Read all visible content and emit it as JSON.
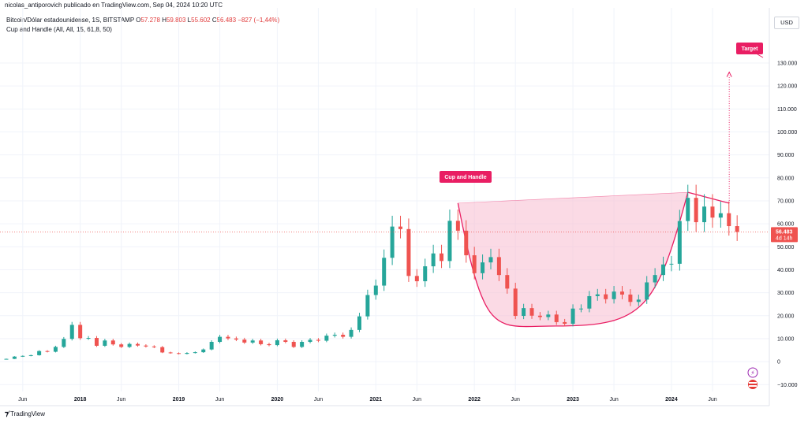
{
  "header": {
    "publisher_line": "nicolas_antiporovich publicado en TradingView.com, Sep 04, 2024 10:20 UTC"
  },
  "legend": {
    "symbol": "Bitcoin/Dólar estadounidense, 1S, BITSTAMP",
    "o_label": "O",
    "o_value": "57.278",
    "h_label": "H",
    "h_value": "59.803",
    "l_label": "L",
    "l_value": "55.602",
    "c_label": "C",
    "c_value": "56.483",
    "change": "−827 (−1,44%)",
    "indicator": "Cup and Handle (All, All, 15, 61,8, 50)"
  },
  "currency_button": "USD",
  "footer": {
    "brand": "TradingView"
  },
  "price_label": {
    "value": "56.483",
    "countdown": "4d 14h"
  },
  "annotations": {
    "cup_label": "Cup and Handle",
    "target_label": "Target"
  },
  "colors": {
    "up": "#26a69a",
    "down": "#ef5350",
    "accent": "#e91e63",
    "cup_fill": "#f8bbd0"
  },
  "chart_data": {
    "type": "candlestick",
    "ylim": [
      -13000,
      142000
    ],
    "y_ticks": [
      -10000,
      0,
      10000,
      20000,
      30000,
      40000,
      50000,
      60000,
      70000,
      80000,
      90000,
      100000,
      110000,
      120000,
      130000
    ],
    "y_tick_labels": [
      "−10.000",
      "0",
      "10.000",
      "20.000",
      "30.000",
      "40.000",
      "50.000",
      "60.000",
      "70.000",
      "80.000",
      "90.000",
      "100.000",
      "110.000",
      "120.000",
      "130.000"
    ],
    "x_ticks": [
      "2017-06",
      "2018-01",
      "2018-06",
      "2019-01",
      "2019-06",
      "2020-01",
      "2020-06",
      "2021-01",
      "2021-06",
      "2022-01",
      "2022-06",
      "2023-01",
      "2023-06",
      "2024-01",
      "2024-06"
    ],
    "x_tick_labels": [
      "Jun",
      "2018",
      "Jun",
      "2019",
      "Jun",
      "2020",
      "Jun",
      "2021",
      "Jun",
      "2022",
      "Jun",
      "2023",
      "Jun",
      "2024",
      "Jun"
    ],
    "x_range": [
      "2017-04",
      "2024-11"
    ],
    "last_close": 56483,
    "closes": [
      [
        "2017-04",
        1200
      ],
      [
        "2017-05",
        2200
      ],
      [
        "2017-06",
        2500
      ],
      [
        "2017-07",
        2800
      ],
      [
        "2017-08",
        4600
      ],
      [
        "2017-09",
        4300
      ],
      [
        "2017-10",
        6400
      ],
      [
        "2017-11",
        9900
      ],
      [
        "2017-12",
        16000
      ],
      [
        "2018-01",
        10200
      ],
      [
        "2018-02",
        10300
      ],
      [
        "2018-03",
        6900
      ],
      [
        "2018-04",
        9200
      ],
      [
        "2018-05",
        7500
      ],
      [
        "2018-06",
        6400
      ],
      [
        "2018-07",
        7700
      ],
      [
        "2018-08",
        7000
      ],
      [
        "2018-09",
        6600
      ],
      [
        "2018-10",
        6300
      ],
      [
        "2018-11",
        4000
      ],
      [
        "2018-12",
        3700
      ],
      [
        "2019-01",
        3400
      ],
      [
        "2019-02",
        3800
      ],
      [
        "2019-03",
        4100
      ],
      [
        "2019-04",
        5300
      ],
      [
        "2019-05",
        8600
      ],
      [
        "2019-06",
        10800
      ],
      [
        "2019-07",
        10100
      ],
      [
        "2019-08",
        9600
      ],
      [
        "2019-09",
        8300
      ],
      [
        "2019-10",
        9200
      ],
      [
        "2019-11",
        7600
      ],
      [
        "2019-12",
        7200
      ],
      [
        "2020-01",
        9300
      ],
      [
        "2020-02",
        8600
      ],
      [
        "2020-03",
        6400
      ],
      [
        "2020-04",
        8600
      ],
      [
        "2020-05",
        9500
      ],
      [
        "2020-06",
        9100
      ],
      [
        "2020-07",
        11300
      ],
      [
        "2020-08",
        11700
      ],
      [
        "2020-09",
        10800
      ],
      [
        "2020-10",
        13800
      ],
      [
        "2020-11",
        19700
      ],
      [
        "2020-12",
        29000
      ],
      [
        "2021-01",
        33100
      ],
      [
        "2021-02",
        45200
      ],
      [
        "2021-03",
        58800
      ],
      [
        "2021-04",
        57700
      ],
      [
        "2021-05",
        37300
      ],
      [
        "2021-06",
        35000
      ],
      [
        "2021-07",
        41500
      ],
      [
        "2021-08",
        47100
      ],
      [
        "2021-09",
        43800
      ],
      [
        "2021-10",
        61300
      ],
      [
        "2021-11",
        57000
      ],
      [
        "2021-12",
        46300
      ],
      [
        "2022-01",
        38500
      ],
      [
        "2022-02",
        43200
      ],
      [
        "2022-03",
        45500
      ],
      [
        "2022-04",
        37700
      ],
      [
        "2022-05",
        31800
      ],
      [
        "2022-06",
        19900
      ],
      [
        "2022-07",
        23300
      ],
      [
        "2022-08",
        20000
      ],
      [
        "2022-09",
        19400
      ],
      [
        "2022-10",
        20500
      ],
      [
        "2022-11",
        17200
      ],
      [
        "2022-12",
        16500
      ],
      [
        "2023-01",
        23100
      ],
      [
        "2023-02",
        23100
      ],
      [
        "2023-03",
        28500
      ],
      [
        "2023-04",
        29300
      ],
      [
        "2023-05",
        27200
      ],
      [
        "2023-06",
        30500
      ],
      [
        "2023-07",
        29200
      ],
      [
        "2023-08",
        26000
      ],
      [
        "2023-09",
        27000
      ],
      [
        "2023-10",
        34500
      ],
      [
        "2023-11",
        37700
      ],
      [
        "2023-12",
        42300
      ],
      [
        "2024-01",
        42600
      ],
      [
        "2024-02",
        61200
      ],
      [
        "2024-03",
        71300
      ],
      [
        "2024-04",
        60700
      ],
      [
        "2024-05",
        67500
      ],
      [
        "2024-06",
        62700
      ],
      [
        "2024-07",
        64600
      ],
      [
        "2024-08",
        59000
      ],
      [
        "2024-09",
        56483
      ]
    ],
    "cup_and_handle": {
      "label": "Cup and Handle",
      "left_rim": [
        "2021-11",
        69000
      ],
      "bottom": [
        "2022-11",
        15500
      ],
      "right_rim": [
        "2024-03",
        73700
      ],
      "handle_end": [
        "2024-08",
        69000
      ],
      "target_label": "Target",
      "target": [
        "2024-09",
        126000
      ]
    }
  }
}
